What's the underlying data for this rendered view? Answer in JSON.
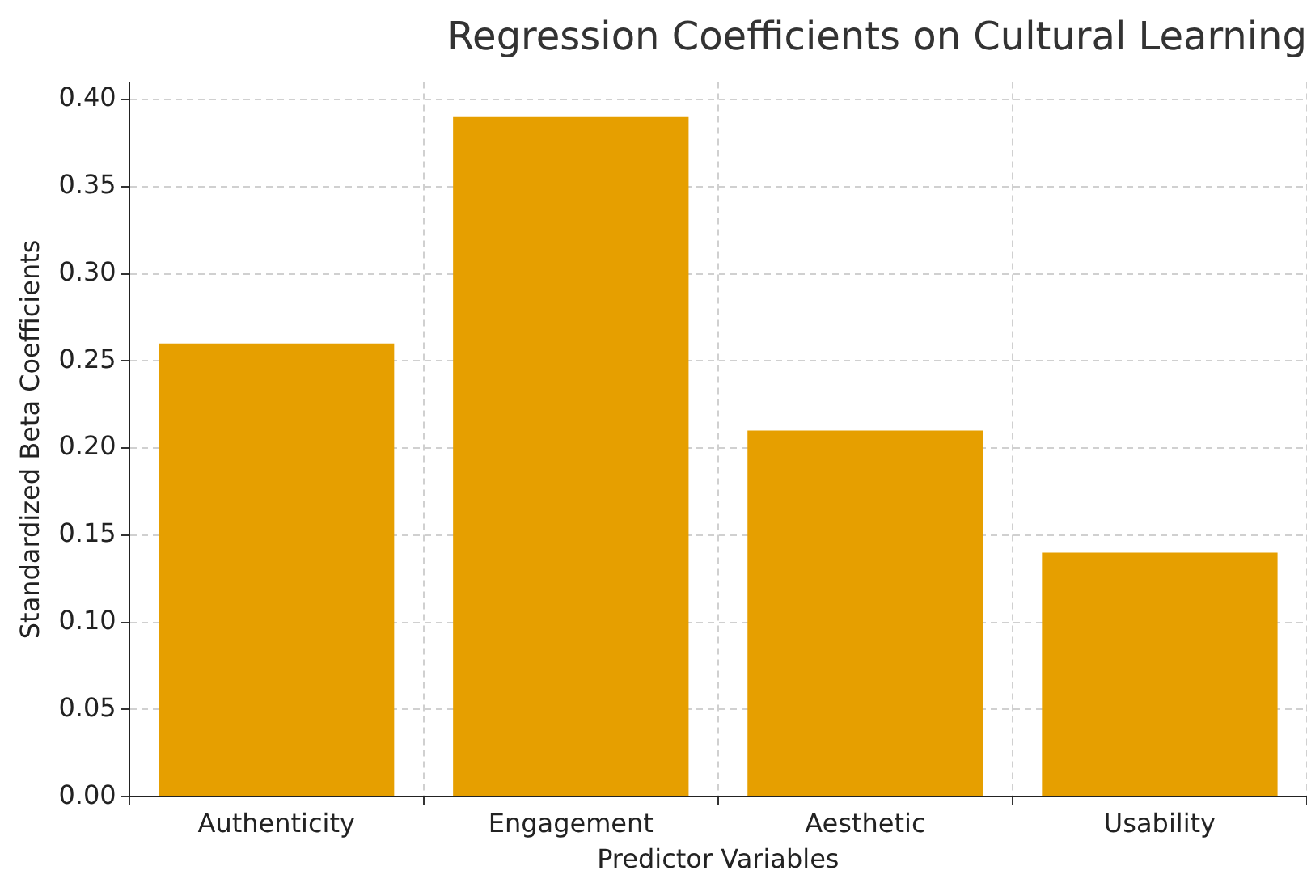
{
  "chart_data": {
    "type": "bar",
    "title": "Regression Coefficients on Cultural Learning",
    "xlabel": "Predictor Variables",
    "ylabel": "Standardized Beta Coefficients",
    "categories": [
      "Authenticity",
      "Engagement",
      "Aesthetic",
      "Usability"
    ],
    "values": [
      0.26,
      0.39,
      0.21,
      0.14
    ],
    "color": "#e69f00",
    "ylim": [
      0,
      0.41
    ],
    "yticks": [
      {
        "value": 0,
        "label": "0.00"
      },
      {
        "value": 0.05,
        "label": "0.05"
      },
      {
        "value": 0.1,
        "label": "0.10"
      },
      {
        "value": 0.15,
        "label": "0.15"
      },
      {
        "value": 0.2,
        "label": "0.20"
      },
      {
        "value": 0.25,
        "label": "0.25"
      },
      {
        "value": 0.3,
        "label": "0.30"
      },
      {
        "value": 0.35,
        "label": "0.35"
      },
      {
        "value": 0.4,
        "label": "0.40"
      }
    ],
    "grid": true
  }
}
